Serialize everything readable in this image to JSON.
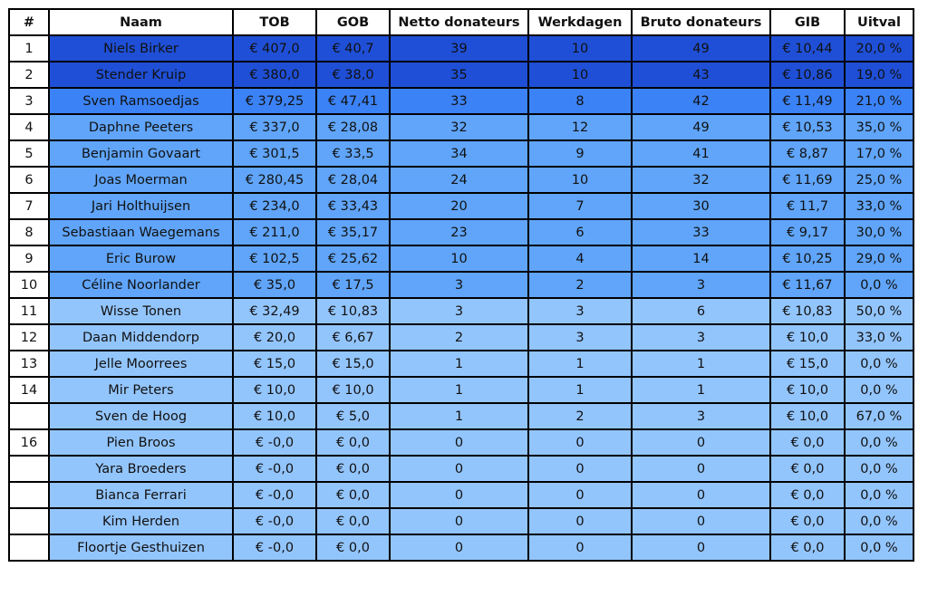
{
  "headers": [
    "#",
    "Naam",
    "TOB",
    "GOB",
    "Netto donateurs",
    "Werkdagen",
    "Bruto donateurs",
    "GIB",
    "Uitval"
  ],
  "rows": [
    {
      "rank": "1",
      "naam": "Niels Birker",
      "tob": "€ 407,0",
      "gob": "€ 40,7",
      "netto": "39",
      "werkdagen": "10",
      "bruto": "49",
      "gib": "€ 10,44",
      "uitval": "20,0 %",
      "tier": 1
    },
    {
      "rank": "2",
      "naam": "Stender Kruip",
      "tob": "€ 380,0",
      "gob": "€ 38,0",
      "netto": "35",
      "werkdagen": "10",
      "bruto": "43",
      "gib": "€ 10,86",
      "uitval": "19,0 %",
      "tier": 1
    },
    {
      "rank": "3",
      "naam": "Sven Ramsoedjas",
      "tob": "€ 379,25",
      "gob": "€ 47,41",
      "netto": "33",
      "werkdagen": "8",
      "bruto": "42",
      "gib": "€ 11,49",
      "uitval": "21,0 %",
      "tier": 2
    },
    {
      "rank": "4",
      "naam": "Daphne Peeters",
      "tob": "€ 337,0",
      "gob": "€ 28,08",
      "netto": "32",
      "werkdagen": "12",
      "bruto": "49",
      "gib": "€ 10,53",
      "uitval": "35,0 %",
      "tier": 3
    },
    {
      "rank": "5",
      "naam": "Benjamin Govaart",
      "tob": "€ 301,5",
      "gob": "€ 33,5",
      "netto": "34",
      "werkdagen": "9",
      "bruto": "41",
      "gib": "€ 8,87",
      "uitval": "17,0 %",
      "tier": 3
    },
    {
      "rank": "6",
      "naam": "Joas Moerman",
      "tob": "€ 280,45",
      "gob": "€ 28,04",
      "netto": "24",
      "werkdagen": "10",
      "bruto": "32",
      "gib": "€ 11,69",
      "uitval": "25,0 %",
      "tier": 3
    },
    {
      "rank": "7",
      "naam": "Jari Holthuijsen",
      "tob": "€ 234,0",
      "gob": "€ 33,43",
      "netto": "20",
      "werkdagen": "7",
      "bruto": "30",
      "gib": "€ 11,7",
      "uitval": "33,0 %",
      "tier": 3
    },
    {
      "rank": "8",
      "naam": "Sebastiaan Waegemans",
      "tob": "€ 211,0",
      "gob": "€ 35,17",
      "netto": "23",
      "werkdagen": "6",
      "bruto": "33",
      "gib": "€ 9,17",
      "uitval": "30,0 %",
      "tier": 3
    },
    {
      "rank": "9",
      "naam": "Eric Burow",
      "tob": "€ 102,5",
      "gob": "€ 25,62",
      "netto": "10",
      "werkdagen": "4",
      "bruto": "14",
      "gib": "€ 10,25",
      "uitval": "29,0 %",
      "tier": 3
    },
    {
      "rank": "10",
      "naam": "Céline Noorlander",
      "tob": "€ 35,0",
      "gob": "€ 17,5",
      "netto": "3",
      "werkdagen": "2",
      "bruto": "3",
      "gib": "€ 11,67",
      "uitval": "0,0 %",
      "tier": 3
    },
    {
      "rank": "11",
      "naam": "Wisse Tonen",
      "tob": "€ 32,49",
      "gob": "€ 10,83",
      "netto": "3",
      "werkdagen": "3",
      "bruto": "6",
      "gib": "€ 10,83",
      "uitval": "50,0 %",
      "tier": 4
    },
    {
      "rank": "12",
      "naam": "Daan Middendorp",
      "tob": "€ 20,0",
      "gob": "€ 6,67",
      "netto": "2",
      "werkdagen": "3",
      "bruto": "3",
      "gib": "€ 10,0",
      "uitval": "33,0 %",
      "tier": 4
    },
    {
      "rank": "13",
      "naam": "Jelle Moorrees",
      "tob": "€ 15,0",
      "gob": "€ 15,0",
      "netto": "1",
      "werkdagen": "1",
      "bruto": "1",
      "gib": "€ 15,0",
      "uitval": "0,0 %",
      "tier": 4
    },
    {
      "rank": "14",
      "naam": "Mir Peters",
      "tob": "€ 10,0",
      "gob": "€ 10,0",
      "netto": "1",
      "werkdagen": "1",
      "bruto": "1",
      "gib": "€ 10,0",
      "uitval": "0,0 %",
      "tier": 4
    },
    {
      "rank": "",
      "naam": "Sven de Hoog",
      "tob": "€ 10,0",
      "gob": "€ 5,0",
      "netto": "1",
      "werkdagen": "2",
      "bruto": "3",
      "gib": "€ 10,0",
      "uitval": "67,0 %",
      "tier": 4
    },
    {
      "rank": "16",
      "naam": "Pien Broos",
      "tob": "€ -0,0",
      "gob": "€ 0,0",
      "netto": "0",
      "werkdagen": "0",
      "bruto": "0",
      "gib": "€ 0,0",
      "uitval": "0,0 %",
      "tier": 4
    },
    {
      "rank": "",
      "naam": "Yara Broeders",
      "tob": "€ -0,0",
      "gob": "€ 0,0",
      "netto": "0",
      "werkdagen": "0",
      "bruto": "0",
      "gib": "€ 0,0",
      "uitval": "0,0 %",
      "tier": 4
    },
    {
      "rank": "",
      "naam": "Bianca Ferrari",
      "tob": "€ -0,0",
      "gob": "€ 0,0",
      "netto": "0",
      "werkdagen": "0",
      "bruto": "0",
      "gib": "€ 0,0",
      "uitval": "0,0 %",
      "tier": 4
    },
    {
      "rank": "",
      "naam": "Kim Herden",
      "tob": "€ -0,0",
      "gob": "€ 0,0",
      "netto": "0",
      "werkdagen": "0",
      "bruto": "0",
      "gib": "€ 0,0",
      "uitval": "0,0 %",
      "tier": 4
    },
    {
      "rank": "",
      "naam": "Floortje Gesthuizen",
      "tob": "€ -0,0",
      "gob": "€ 0,0",
      "netto": "0",
      "werkdagen": "0",
      "bruto": "0",
      "gib": "€ 0,0",
      "uitval": "0,0 %",
      "tier": 4
    }
  ],
  "colors": {
    "tier1": "#1f4fd6",
    "tier2": "#3b82f6",
    "tier3": "#60a5fa",
    "tier4": "#93c5fd"
  }
}
